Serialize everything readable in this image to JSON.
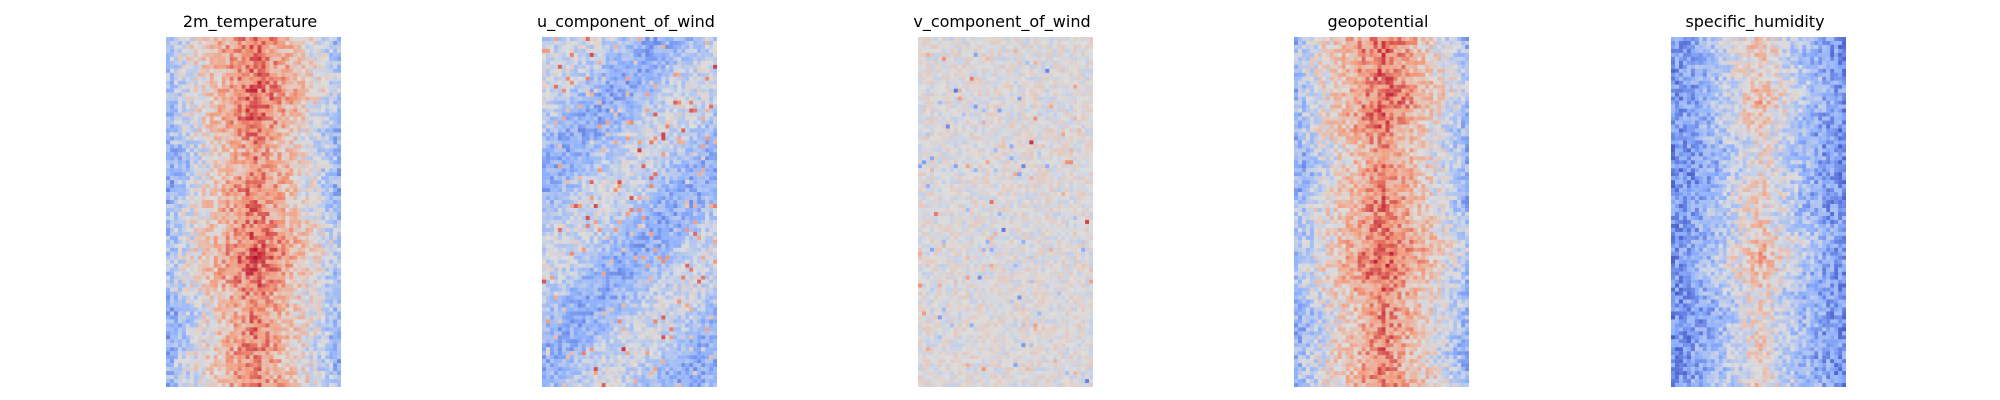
{
  "chart_data": [
    {
      "type": "heatmap",
      "title": "2m_temperature",
      "colormap": "coolwarm",
      "pattern": "warm-center"
    },
    {
      "type": "heatmap",
      "title": "u_component_of_wind",
      "colormap": "coolwarm",
      "pattern": "mostly-cool"
    },
    {
      "type": "heatmap",
      "title": "v_component_of_wind",
      "colormap": "coolwarm",
      "pattern": "neutral"
    },
    {
      "type": "heatmap",
      "title": "geopotential",
      "colormap": "coolwarm",
      "pattern": "warm-center"
    },
    {
      "type": "heatmap",
      "title": "specific_humidity",
      "colormap": "coolwarm",
      "pattern": "cool-edges"
    }
  ]
}
